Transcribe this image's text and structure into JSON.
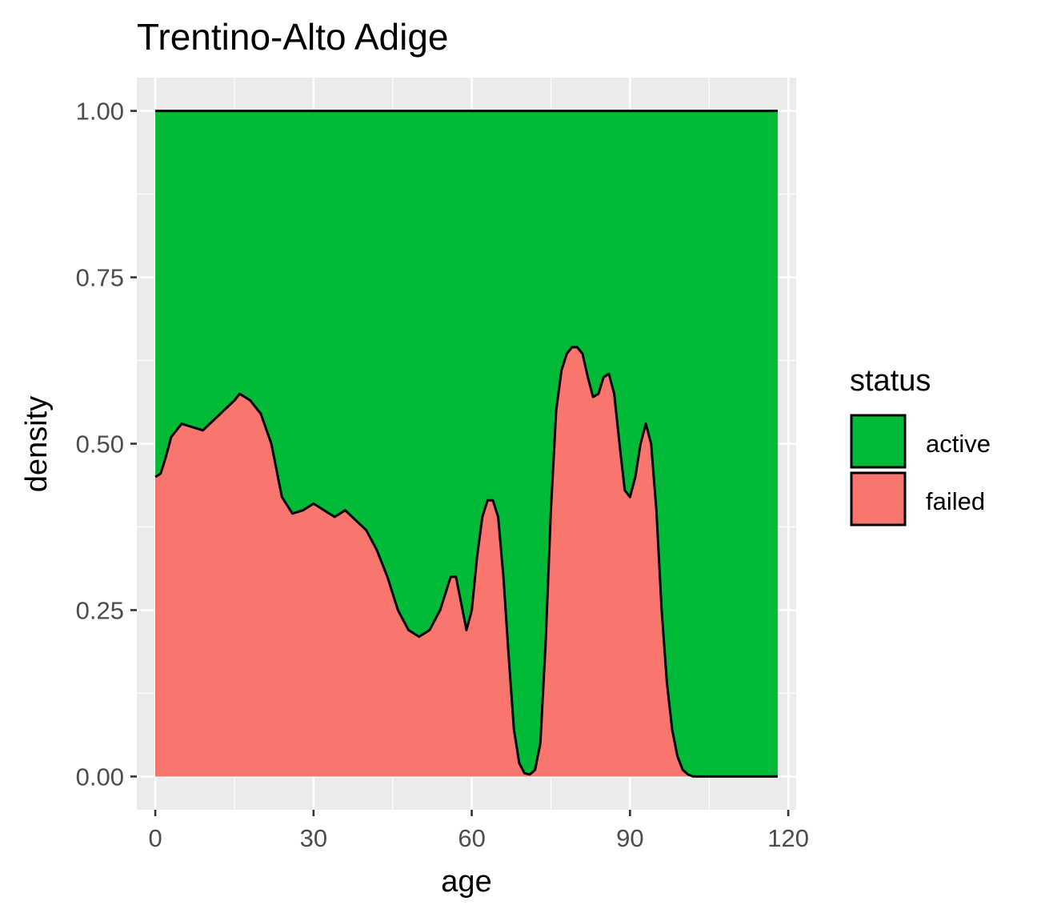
{
  "chart_data": {
    "type": "area",
    "title": "Trentino-Alto Adige",
    "xlabel": "age",
    "ylabel": "density",
    "xlim": [
      -3.5,
      121.5
    ],
    "ylim": [
      -0.05,
      1.05
    ],
    "x_ticks": [
      0,
      30,
      60,
      90,
      120
    ],
    "x_tick_labels": [
      "0",
      "30",
      "60",
      "90",
      "120"
    ],
    "y_ticks": [
      0.0,
      0.25,
      0.5,
      0.75,
      1.0
    ],
    "y_tick_labels": [
      "0.00",
      "0.25",
      "0.50",
      "0.75",
      "1.00"
    ],
    "stacking": "fill",
    "grid": true,
    "legend": {
      "title": "status",
      "position": "right",
      "entries": [
        {
          "label": "active",
          "color": "#00BA38"
        },
        {
          "label": "failed",
          "color": "#F8766D"
        }
      ]
    },
    "x_range": [
      0,
      118
    ],
    "series": [
      {
        "name": "active",
        "color": "#00BA38",
        "upper": 1.0
      },
      {
        "name": "failed",
        "color": "#F8766D",
        "points": [
          [
            0,
            0.45
          ],
          [
            1,
            0.455
          ],
          [
            2,
            0.48
          ],
          [
            3,
            0.51
          ],
          [
            5,
            0.53
          ],
          [
            7,
            0.525
          ],
          [
            9,
            0.52
          ],
          [
            11,
            0.535
          ],
          [
            13,
            0.55
          ],
          [
            15,
            0.565
          ],
          [
            16,
            0.575
          ],
          [
            18,
            0.565
          ],
          [
            20,
            0.545
          ],
          [
            22,
            0.5
          ],
          [
            24,
            0.42
          ],
          [
            26,
            0.395
          ],
          [
            28,
            0.4
          ],
          [
            30,
            0.41
          ],
          [
            32,
            0.4
          ],
          [
            34,
            0.39
          ],
          [
            36,
            0.4
          ],
          [
            38,
            0.385
          ],
          [
            40,
            0.37
          ],
          [
            42,
            0.34
          ],
          [
            44,
            0.3
          ],
          [
            46,
            0.25
          ],
          [
            48,
            0.22
          ],
          [
            50,
            0.21
          ],
          [
            52,
            0.22
          ],
          [
            54,
            0.25
          ],
          [
            56,
            0.3
          ],
          [
            57,
            0.3
          ],
          [
            58,
            0.26
          ],
          [
            59,
            0.22
          ],
          [
            60,
            0.25
          ],
          [
            61,
            0.33
          ],
          [
            62,
            0.39
          ],
          [
            63,
            0.415
          ],
          [
            64,
            0.415
          ],
          [
            65,
            0.39
          ],
          [
            66,
            0.3
          ],
          [
            67,
            0.18
          ],
          [
            68,
            0.07
          ],
          [
            69,
            0.02
          ],
          [
            70,
            0.005
          ],
          [
            71,
            0.003
          ],
          [
            72,
            0.01
          ],
          [
            73,
            0.05
          ],
          [
            74,
            0.2
          ],
          [
            75,
            0.4
          ],
          [
            76,
            0.55
          ],
          [
            77,
            0.61
          ],
          [
            78,
            0.635
          ],
          [
            79,
            0.645
          ],
          [
            80,
            0.645
          ],
          [
            81,
            0.635
          ],
          [
            82,
            0.6
          ],
          [
            83,
            0.57
          ],
          [
            84,
            0.575
          ],
          [
            85,
            0.6
          ],
          [
            86,
            0.605
          ],
          [
            87,
            0.575
          ],
          [
            88,
            0.5
          ],
          [
            89,
            0.43
          ],
          [
            90,
            0.42
          ],
          [
            91,
            0.45
          ],
          [
            92,
            0.5
          ],
          [
            93,
            0.53
          ],
          [
            94,
            0.5
          ],
          [
            95,
            0.4
          ],
          [
            96,
            0.25
          ],
          [
            97,
            0.14
          ],
          [
            98,
            0.07
          ],
          [
            99,
            0.03
          ],
          [
            100,
            0.01
          ],
          [
            101,
            0.003
          ],
          [
            102,
            0.0
          ],
          [
            105,
            0.0
          ],
          [
            118,
            0.0
          ]
        ]
      }
    ]
  }
}
